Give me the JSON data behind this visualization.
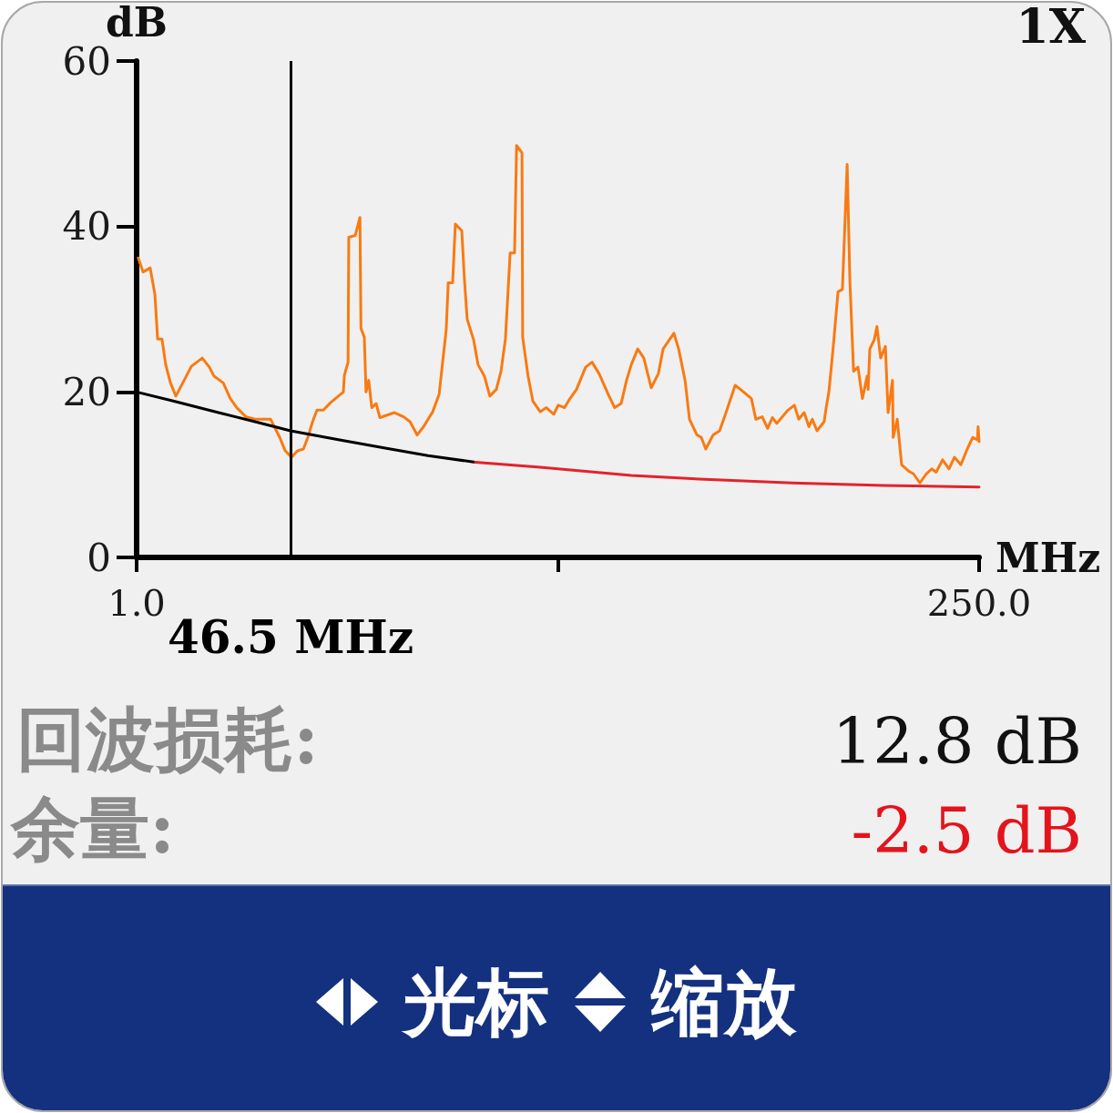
{
  "chart_data": {
    "type": "line",
    "xlabel": "MHz",
    "ylabel": "dB",
    "xlim": [
      1,
      250
    ],
    "xticks": [
      {
        "value": 1,
        "label": "1.0"
      },
      {
        "value": 125.5,
        "label": null
      },
      {
        "value": 250,
        "label": "250.0"
      }
    ],
    "ylim": [
      0,
      60
    ],
    "yticks": [
      0,
      20,
      40,
      60
    ],
    "marker": "none",
    "series": [
      {
        "color": "#f97a12",
        "x": [
          1.5,
          2.9,
          5.0,
          6.4,
          7.2,
          8.5,
          9.6,
          11.0,
          12.6,
          15.8,
          17.2,
          20.4,
          22.5,
          23.9,
          26.6,
          28.7,
          30.6,
          33.3,
          36.0,
          40.6,
          43.3,
          44.9,
          46.8,
          48.6,
          50.3,
          51.6,
          53.0,
          54.3,
          56.2,
          58.3,
          62.1,
          62.4,
          63.5,
          63.7,
          65.6,
          67.0,
          67.3,
          68.3,
          68.8,
          69.6,
          70.5,
          71.8,
          72.9,
          77.2,
          79.9,
          81.8,
          83.9,
          85.8,
          88.5,
          90.4,
          91.2,
          92.5,
          93.1,
          94.4,
          95.2,
          97.1,
          97.9,
          98.7,
          100.6,
          101.9,
          103.8,
          105.4,
          107.3,
          108.7,
          110.0,
          111.4,
          112.7,
          113.3,
          114.9,
          115.1,
          116.7,
          118.1,
          120.3,
          122.1,
          124.3,
          125.6,
          127.5,
          128.9,
          131.0,
          133.7,
          135.6,
          137.7,
          140.4,
          142.3,
          144.2,
          145.8,
          147.2,
          149.1,
          150.9,
          153.1,
          155.2,
          156.6,
          159.8,
          161.2,
          163.1,
          164.4,
          166.6,
          167.9,
          169.2,
          171.4,
          173.3,
          175.2,
          177.9,
          179.5,
          182.7,
          184.0,
          185.9,
          187.5,
          188.9,
          190.2,
          193.5,
          195.4,
          196.7,
          198.3,
          199.7,
          200.7,
          202.1,
          204.2,
          204.8,
          205.6,
          206.9,
          208.3,
          209.6,
          211.0,
          211.8,
          212.9,
          214.2,
          215.5,
          216.9,
          217.2,
          217.7,
          219.0,
          219.8,
          220.9,
          222.3,
          223.1,
          224.4,
          224.6,
          225.8,
          227.1,
          229.3,
          230.6,
          232.5,
          234.4,
          236.0,
          237.3,
          239.2,
          241.1,
          242.7,
          244.6,
          246.5,
          248.1,
          249.5,
          249.7,
          250.0
        ],
        "values": [
          36.2,
          34.5,
          35.0,
          31.8,
          26.4,
          26.4,
          23.3,
          21.1,
          19.5,
          22.0,
          23.1,
          24.1,
          23.0,
          21.9,
          21.1,
          19.2,
          18.1,
          17.0,
          16.7,
          16.7,
          14.5,
          12.9,
          12.1,
          12.9,
          13.1,
          14.5,
          16.4,
          17.8,
          17.8,
          18.7,
          20.0,
          22.0,
          23.6,
          38.7,
          38.9,
          41.1,
          27.7,
          26.6,
          20.0,
          21.4,
          18.1,
          18.6,
          16.9,
          17.5,
          17.0,
          16.4,
          14.8,
          15.8,
          17.6,
          19.7,
          22.7,
          27.5,
          33.2,
          33.2,
          40.3,
          39.5,
          33.5,
          28.8,
          26.3,
          23.3,
          21.9,
          19.5,
          20.3,
          22.5,
          26.4,
          36.8,
          36.8,
          49.8,
          48.9,
          26.6,
          21.9,
          18.9,
          17.6,
          18.1,
          17.3,
          18.4,
          18.1,
          19.1,
          20.3,
          23.0,
          23.6,
          22.2,
          19.7,
          18.1,
          18.6,
          21.4,
          23.3,
          25.2,
          24.1,
          20.5,
          22.2,
          25.2,
          27.1,
          25.2,
          21.4,
          16.7,
          14.8,
          14.5,
          13.1,
          14.8,
          15.3,
          17.5,
          20.8,
          20.3,
          19.2,
          16.7,
          17.0,
          15.6,
          16.9,
          16.2,
          17.8,
          18.4,
          16.7,
          17.5,
          15.8,
          16.7,
          15.3,
          16.4,
          18.1,
          20.0,
          25.5,
          32.1,
          32.4,
          47.5,
          33.5,
          22.5,
          23.0,
          19.2,
          21.9,
          20.3,
          25.2,
          26.3,
          27.9,
          24.1,
          25.5,
          17.5,
          21.4,
          14.5,
          16.7,
          11.2,
          10.4,
          10.1,
          9.0,
          10.1,
          10.7,
          10.3,
          11.8,
          10.7,
          12.1,
          11.2,
          13.1,
          14.5,
          14.2,
          15.8,
          14.0
        ]
      },
      {
        "color": "#000000",
        "x": [
          1,
          11.8,
          25.2,
          36.0,
          46.5,
          61.0,
          74.5,
          87.1,
          101.1
        ],
        "values": [
          20.0,
          18.9,
          17.5,
          16.4,
          15.3,
          14.2,
          13.2,
          12.3,
          11.5
        ]
      },
      {
        "color": "#e2232c",
        "x": [
          101.1,
          120.3,
          147.2,
          170.6,
          194.8,
          221.7,
          250
        ],
        "values": [
          11.5,
          10.9,
          9.9,
          9.4,
          9.0,
          8.7,
          8.5
        ]
      }
    ],
    "ref_lines": [
      {
        "axis": "x",
        "value": 46.5,
        "label": "46.5 MHz",
        "color": "#000000"
      }
    ],
    "annotations": [
      "1X",
      "回波损耗:",
      "12.8 dB",
      "余量:",
      "-2.5 dB",
      "光标",
      "缩放"
    ]
  }
}
